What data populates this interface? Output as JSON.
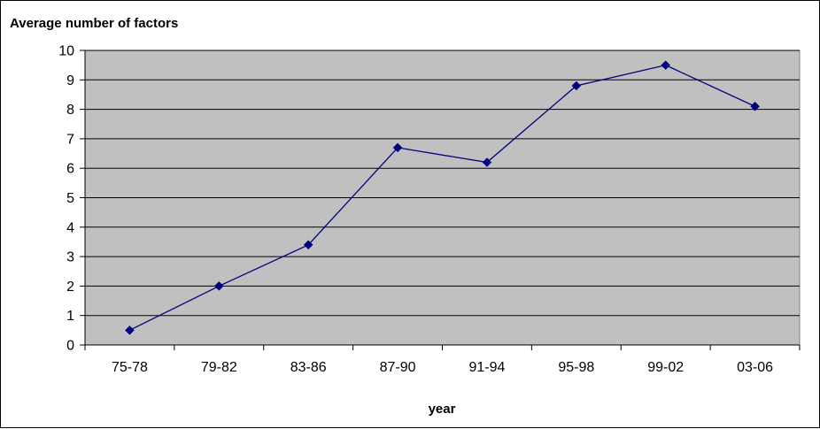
{
  "chart_data": {
    "type": "line",
    "title": "",
    "ylabel": "Average number of factors",
    "xlabel": "year",
    "categories": [
      "75-78",
      "79-82",
      "83-86",
      "87-90",
      "91-94",
      "95-98",
      "99-02",
      "03-06"
    ],
    "series": [
      {
        "values": [
          0.5,
          2.0,
          3.4,
          6.7,
          6.2,
          8.8,
          9.5,
          8.1
        ]
      }
    ],
    "ylim": [
      0,
      10
    ],
    "yticks": [
      0,
      1,
      2,
      3,
      4,
      5,
      6,
      7,
      8,
      9,
      10
    ],
    "grid": true,
    "legend": "none",
    "colors": {
      "plot_background": "#c0c0c0",
      "gridline": "#000000",
      "series_line": "#000080",
      "marker": "#000080"
    }
  }
}
